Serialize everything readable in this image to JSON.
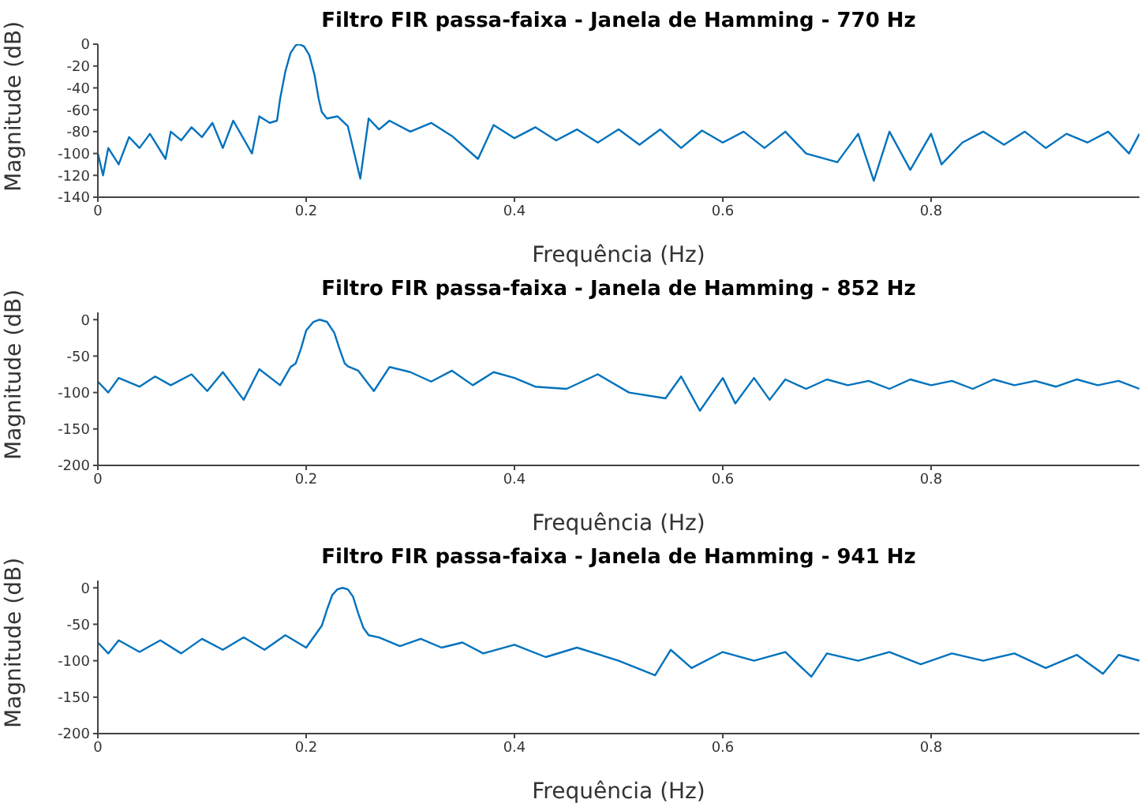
{
  "chart_data": [
    {
      "type": "line",
      "title": "Filtro FIR passa-faixa - Janela de Hamming - 770 Hz",
      "xlabel": "Frequência (Hz)",
      "ylabel": "Magnitude (dB)",
      "xlim": [
        0,
        1
      ],
      "xticks": [
        0,
        0.2,
        0.4,
        0.6,
        0.8
      ],
      "ylim": [
        -140,
        0
      ],
      "yticks": [
        -140,
        -120,
        -100,
        -80,
        -60,
        -40,
        -20,
        0
      ],
      "grid": false,
      "legend": false,
      "marker": "none",
      "line_style": "solid",
      "series": [
        {
          "color": "#0072bd",
          "x": [
            0,
            0.005,
            0.01,
            0.02,
            0.03,
            0.04,
            0.05,
            0.065,
            0.07,
            0.08,
            0.09,
            0.1,
            0.11,
            0.12,
            0.13,
            0.148,
            0.155,
            0.165,
            0.172,
            0.175,
            0.18,
            0.185,
            0.19,
            0.193,
            0.198,
            0.203,
            0.208,
            0.212,
            0.215,
            0.22,
            0.23,
            0.24,
            0.252,
            0.26,
            0.27,
            0.28,
            0.3,
            0.32,
            0.34,
            0.365,
            0.38,
            0.4,
            0.42,
            0.44,
            0.46,
            0.48,
            0.5,
            0.52,
            0.54,
            0.56,
            0.58,
            0.6,
            0.62,
            0.64,
            0.66,
            0.68,
            0.71,
            0.73,
            0.745,
            0.76,
            0.78,
            0.8,
            0.81,
            0.83,
            0.85,
            0.87,
            0.89,
            0.91,
            0.93,
            0.95,
            0.97,
            0.99,
            1.0
          ],
          "values": [
            -100,
            -120,
            -95,
            -110,
            -85,
            -95,
            -82,
            -105,
            -80,
            -88,
            -76,
            -85,
            -72,
            -95,
            -70,
            -100,
            -66,
            -72,
            -70,
            -50,
            -25,
            -8,
            -1,
            0,
            -2,
            -10,
            -28,
            -50,
            -62,
            -68,
            -66,
            -75,
            -123,
            -68,
            -78,
            -70,
            -80,
            -72,
            -84,
            -105,
            -74,
            -86,
            -76,
            -88,
            -78,
            -90,
            -78,
            -92,
            -78,
            -95,
            -79,
            -90,
            -80,
            -95,
            -80,
            -100,
            -108,
            -82,
            -125,
            -80,
            -115,
            -82,
            -110,
            -90,
            -80,
            -92,
            -80,
            -95,
            -82,
            -90,
            -80,
            -100,
            -82
          ]
        }
      ]
    },
    {
      "type": "line",
      "title": "Filtro FIR passa-faixa - Janela de Hamming - 852 Hz",
      "xlabel": "Frequência (Hz)",
      "ylabel": "Magnitude (dB)",
      "xlim": [
        0,
        1
      ],
      "xticks": [
        0,
        0.2,
        0.4,
        0.6,
        0.8
      ],
      "ylim": [
        -200,
        10
      ],
      "yticks": [
        -200,
        -150,
        -100,
        -50,
        0
      ],
      "grid": false,
      "legend": false,
      "marker": "none",
      "line_style": "solid",
      "series": [
        {
          "color": "#0072bd",
          "x": [
            0,
            0.01,
            0.02,
            0.04,
            0.055,
            0.07,
            0.09,
            0.105,
            0.12,
            0.14,
            0.155,
            0.175,
            0.185,
            0.19,
            0.195,
            0.2,
            0.207,
            0.213,
            0.22,
            0.227,
            0.232,
            0.237,
            0.24,
            0.25,
            0.265,
            0.28,
            0.3,
            0.32,
            0.34,
            0.36,
            0.38,
            0.4,
            0.42,
            0.45,
            0.48,
            0.51,
            0.545,
            0.56,
            0.578,
            0.6,
            0.612,
            0.63,
            0.645,
            0.66,
            0.68,
            0.7,
            0.72,
            0.74,
            0.76,
            0.78,
            0.8,
            0.82,
            0.84,
            0.86,
            0.88,
            0.9,
            0.92,
            0.94,
            0.96,
            0.98,
            1.0
          ],
          "values": [
            -85,
            -100,
            -80,
            -92,
            -78,
            -90,
            -75,
            -98,
            -72,
            -110,
            -68,
            -90,
            -65,
            -60,
            -40,
            -15,
            -3,
            0,
            -3,
            -18,
            -40,
            -60,
            -64,
            -70,
            -98,
            -65,
            -72,
            -85,
            -70,
            -90,
            -72,
            -80,
            -92,
            -95,
            -75,
            -100,
            -108,
            -78,
            -125,
            -80,
            -115,
            -80,
            -110,
            -82,
            -95,
            -82,
            -90,
            -84,
            -95,
            -82,
            -90,
            -84,
            -95,
            -82,
            -90,
            -84,
            -92,
            -82,
            -90,
            -84,
            -95
          ]
        }
      ]
    },
    {
      "type": "line",
      "title": "Filtro FIR passa-faixa - Janela de Hamming - 941 Hz",
      "xlabel": "Frequência (Hz)",
      "ylabel": "Magnitude (dB)",
      "xlim": [
        0,
        1
      ],
      "xticks": [
        0,
        0.2,
        0.4,
        0.6,
        0.8
      ],
      "ylim": [
        -200,
        10
      ],
      "yticks": [
        -200,
        -150,
        -100,
        -50,
        0
      ],
      "grid": false,
      "legend": false,
      "marker": "none",
      "line_style": "solid",
      "series": [
        {
          "color": "#0072bd",
          "x": [
            0,
            0.01,
            0.02,
            0.04,
            0.06,
            0.08,
            0.1,
            0.12,
            0.14,
            0.16,
            0.18,
            0.2,
            0.21,
            0.215,
            0.22,
            0.225,
            0.23,
            0.235,
            0.24,
            0.245,
            0.25,
            0.255,
            0.26,
            0.27,
            0.29,
            0.31,
            0.33,
            0.35,
            0.37,
            0.4,
            0.43,
            0.46,
            0.5,
            0.535,
            0.55,
            0.57,
            0.6,
            0.63,
            0.66,
            0.685,
            0.7,
            0.73,
            0.76,
            0.79,
            0.82,
            0.85,
            0.88,
            0.91,
            0.94,
            0.965,
            0.98,
            1.0
          ],
          "values": [
            -75,
            -90,
            -72,
            -88,
            -72,
            -90,
            -70,
            -85,
            -68,
            -85,
            -65,
            -82,
            -62,
            -52,
            -30,
            -10,
            -2,
            0,
            -2,
            -12,
            -35,
            -55,
            -65,
            -68,
            -80,
            -70,
            -82,
            -75,
            -90,
            -78,
            -95,
            -82,
            -100,
            -120,
            -85,
            -110,
            -88,
            -100,
            -88,
            -122,
            -90,
            -100,
            -88,
            -105,
            -90,
            -100,
            -90,
            -110,
            -92,
            -118,
            -92,
            -100
          ]
        }
      ]
    }
  ]
}
